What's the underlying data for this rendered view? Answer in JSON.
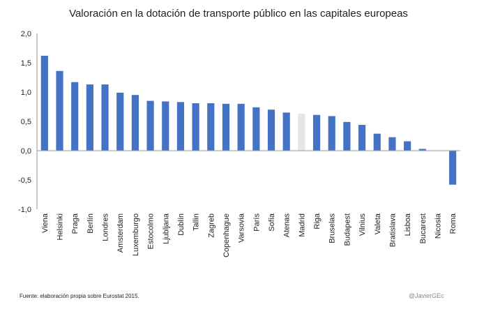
{
  "chart_data": {
    "type": "bar",
    "title": "Valoración en la dotación de transporte público en las capitales europeas",
    "xlabel": "",
    "ylabel": "",
    "ylim": [
      -1.0,
      2.0
    ],
    "yticks": [
      2.0,
      1.5,
      1.0,
      0.5,
      0.0,
      -0.5,
      -1.0
    ],
    "ytick_labels": [
      "2,0",
      "1,5",
      "1,0",
      "0,5",
      "0,0",
      "-0,5",
      "-1,0"
    ],
    "grid": false,
    "bar_color": "#4472C4",
    "highlight_color": "#E6E6E6",
    "highlight_category": "Madrid",
    "categories": [
      "Viena",
      "Helsinki",
      "Praga",
      "Berlín",
      "Londres",
      "Amsterdam",
      "Luxemburgo",
      "Estocolmo",
      "Ljubljana",
      "Dublín",
      "Tallin",
      "Zagreb",
      "Copenhague",
      "Varsovia",
      "París",
      "Sofía",
      "Atenas",
      "Madrid",
      "Riga",
      "Bruselas",
      "Budapest",
      "Vilnius",
      "Valeta",
      "Bratislava",
      "Lisboa",
      "Bucarest",
      "Nicosia",
      "Roma"
    ],
    "values": [
      1.62,
      1.36,
      1.17,
      1.13,
      1.13,
      0.99,
      0.95,
      0.85,
      0.84,
      0.83,
      0.81,
      0.81,
      0.8,
      0.8,
      0.74,
      0.7,
      0.65,
      0.63,
      0.61,
      0.59,
      0.49,
      0.44,
      0.29,
      0.23,
      0.16,
      0.03,
      0.0,
      -0.58
    ]
  },
  "footer": {
    "source": "Fuente: elaboración propia sobre Eurostat 2015.",
    "credit": "@JavierGEc"
  }
}
